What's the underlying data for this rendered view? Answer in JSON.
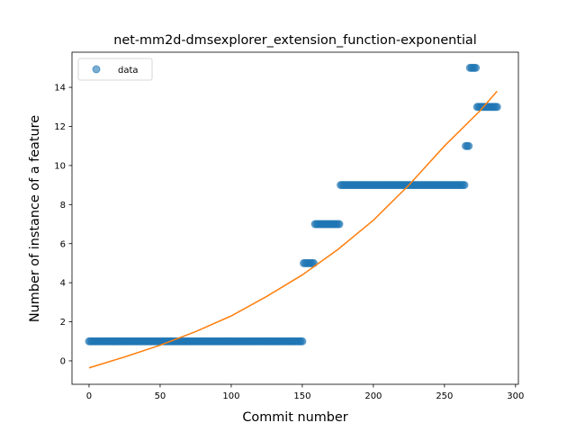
{
  "chart_data": {
    "type": "scatter",
    "title": "net-mm2d-dmsexplorer_extension_function-exponential",
    "xlabel": "Commit number",
    "ylabel": "Number of instance of a feature",
    "xlim": [
      -12,
      302
    ],
    "ylim": [
      -1.2,
      15.8
    ],
    "xticks": [
      0,
      50,
      100,
      150,
      200,
      250,
      300
    ],
    "yticks": [
      0,
      2,
      4,
      6,
      8,
      10,
      12,
      14
    ],
    "grid": false,
    "legend": {
      "position": "top-left",
      "entries": [
        "data"
      ]
    },
    "series": [
      {
        "name": "data",
        "kind": "points",
        "color": "#1f77b4",
        "segments": [
          {
            "x_from": 0,
            "x_to": 150,
            "y": 1
          },
          {
            "x_from": 151,
            "x_to": 158,
            "y": 5
          },
          {
            "x_from": 159,
            "x_to": 176,
            "y": 7
          },
          {
            "x_from": 177,
            "x_to": 264,
            "y": 9
          },
          {
            "x_from": 265,
            "x_to": 267,
            "y": 11
          },
          {
            "x_from": 268,
            "x_to": 272,
            "y": 15
          },
          {
            "x_from": 273,
            "x_to": 287,
            "y": 13
          }
        ]
      },
      {
        "kind": "fit-line",
        "color": "#ff7f0e",
        "points": [
          [
            0,
            -0.36
          ],
          [
            25,
            0.2
          ],
          [
            50,
            0.8
          ],
          [
            75,
            1.5
          ],
          [
            100,
            2.3
          ],
          [
            125,
            3.3
          ],
          [
            150,
            4.4
          ],
          [
            175,
            5.7
          ],
          [
            200,
            7.2
          ],
          [
            225,
            9.0
          ],
          [
            250,
            11.0
          ],
          [
            275,
            12.8
          ],
          [
            287,
            13.8
          ]
        ]
      }
    ]
  }
}
